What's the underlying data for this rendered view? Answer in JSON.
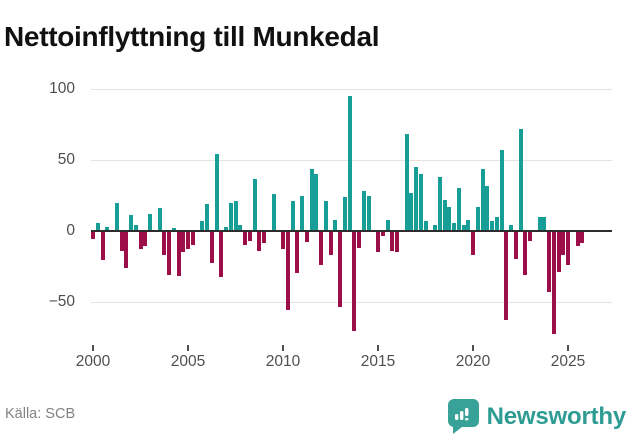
{
  "header": {
    "title": "Nettoinflyttning till Munkedal"
  },
  "footer": {
    "source": "Källa: SCB",
    "brand_name": "Newsworthy",
    "brand_logo_icon": "bar-chart-speech-bubble-icon"
  },
  "colors": {
    "positive_bar": "#169e97",
    "negative_bar": "#9b0e47",
    "zero_line": "#2d2d2d",
    "gridline": "#e4e4e4",
    "brand_teal": "#2e9c93",
    "axis_text": "#4f4f4f",
    "title_text": "#111111",
    "source_text": "#828282"
  },
  "chart_data": {
    "type": "bar",
    "title": "Nettoinflyttning till Munkedal",
    "frequency": "quarterly",
    "start_year": 2000,
    "end_year": 2025,
    "ylim": [
      -75,
      100
    ],
    "grid": "horizontal",
    "legend": "none",
    "y_ticks": [
      {
        "label": "100",
        "value": 100
      },
      {
        "label": "50",
        "value": 50
      },
      {
        "label": "0",
        "value": 0
      },
      {
        "label": "−50",
        "value": -50
      }
    ],
    "x_ticks": [
      {
        "label": "2000",
        "quarter_index": 0
      },
      {
        "label": "2005",
        "quarter_index": 20
      },
      {
        "label": "2010",
        "quarter_index": 40
      },
      {
        "label": "2015",
        "quarter_index": 60
      },
      {
        "label": "2020",
        "quarter_index": 80
      },
      {
        "label": "2025",
        "quarter_index": 100
      }
    ],
    "values": [
      -5,
      6,
      -20,
      3,
      0,
      20,
      -13,
      -25,
      11,
      4,
      -12,
      -10,
      12,
      0,
      16,
      -16,
      -30,
      2,
      -31,
      -14,
      -12,
      -9,
      0,
      7,
      19,
      -22,
      54,
      -32,
      3,
      20,
      21,
      4,
      -9,
      -6,
      37,
      -13,
      -8,
      0,
      26,
      0,
      -12,
      -55,
      21,
      -29,
      25,
      -7,
      44,
      40,
      -23,
      21,
      -16,
      8,
      -53,
      24,
      95,
      -70,
      -11,
      28,
      25,
      0,
      -14,
      -3,
      8,
      -13,
      -14,
      0,
      68,
      27,
      45,
      40,
      7,
      0,
      4,
      38,
      22,
      17,
      6,
      30,
      4,
      8,
      -16,
      17,
      44,
      32,
      7,
      10,
      57,
      -62,
      4,
      -19,
      72,
      -30,
      -6,
      0,
      10,
      10,
      -42,
      -72,
      -28,
      -16,
      -23,
      0,
      -10,
      -8
    ]
  }
}
